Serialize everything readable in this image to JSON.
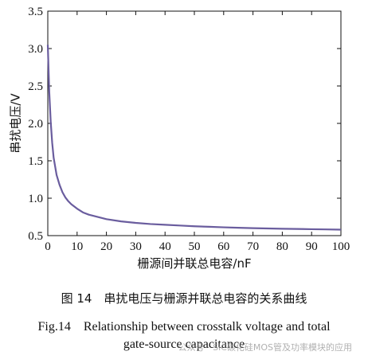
{
  "chart_data": {
    "type": "line",
    "title": "",
    "xlabel": "栅源间并联总电容/nF",
    "ylabel": "串扰电压/V",
    "xlim": [
      0,
      100
    ],
    "ylim": [
      0.5,
      3.5
    ],
    "xticks": [
      0,
      10,
      20,
      30,
      40,
      50,
      60,
      70,
      80,
      90,
      100
    ],
    "yticks": [
      0.5,
      1.0,
      1.5,
      2.0,
      2.5,
      3.0,
      3.5
    ],
    "xtick_labels": [
      "0",
      "10",
      "20",
      "30",
      "40",
      "50",
      "60",
      "70",
      "80",
      "90",
      "100"
    ],
    "ytick_labels": [
      "0.5",
      "1.0",
      "1.5",
      "2.0",
      "2.5",
      "3.0",
      "3.5"
    ],
    "grid": false,
    "series": [
      {
        "color": "#6a5d9e",
        "x": [
          0,
          0.5,
          1,
          1.5,
          2,
          3,
          4,
          5,
          6,
          7,
          8,
          10,
          12,
          14,
          16,
          18,
          20,
          25,
          30,
          35,
          40,
          45,
          50,
          55,
          60,
          65,
          70,
          75,
          80,
          85,
          90,
          95,
          100
        ],
        "y": [
          3.05,
          2.42,
          2.02,
          1.74,
          1.54,
          1.31,
          1.18,
          1.08,
          1.01,
          0.96,
          0.92,
          0.86,
          0.81,
          0.78,
          0.76,
          0.74,
          0.72,
          0.69,
          0.67,
          0.655,
          0.645,
          0.635,
          0.625,
          0.618,
          0.611,
          0.605,
          0.6,
          0.596,
          0.592,
          0.589,
          0.586,
          0.583,
          0.58
        ]
      }
    ]
  },
  "captions": {
    "cn": "图 14　串扰电压与栅源并联总电容的关系曲线",
    "en_line1": "Fig.14　Relationship between crosstalk voltage and total",
    "en_line2": "gate-source capacitance"
  },
  "watermark": "公众号 · SiC碳化硅MOS管及功率模块的应用"
}
